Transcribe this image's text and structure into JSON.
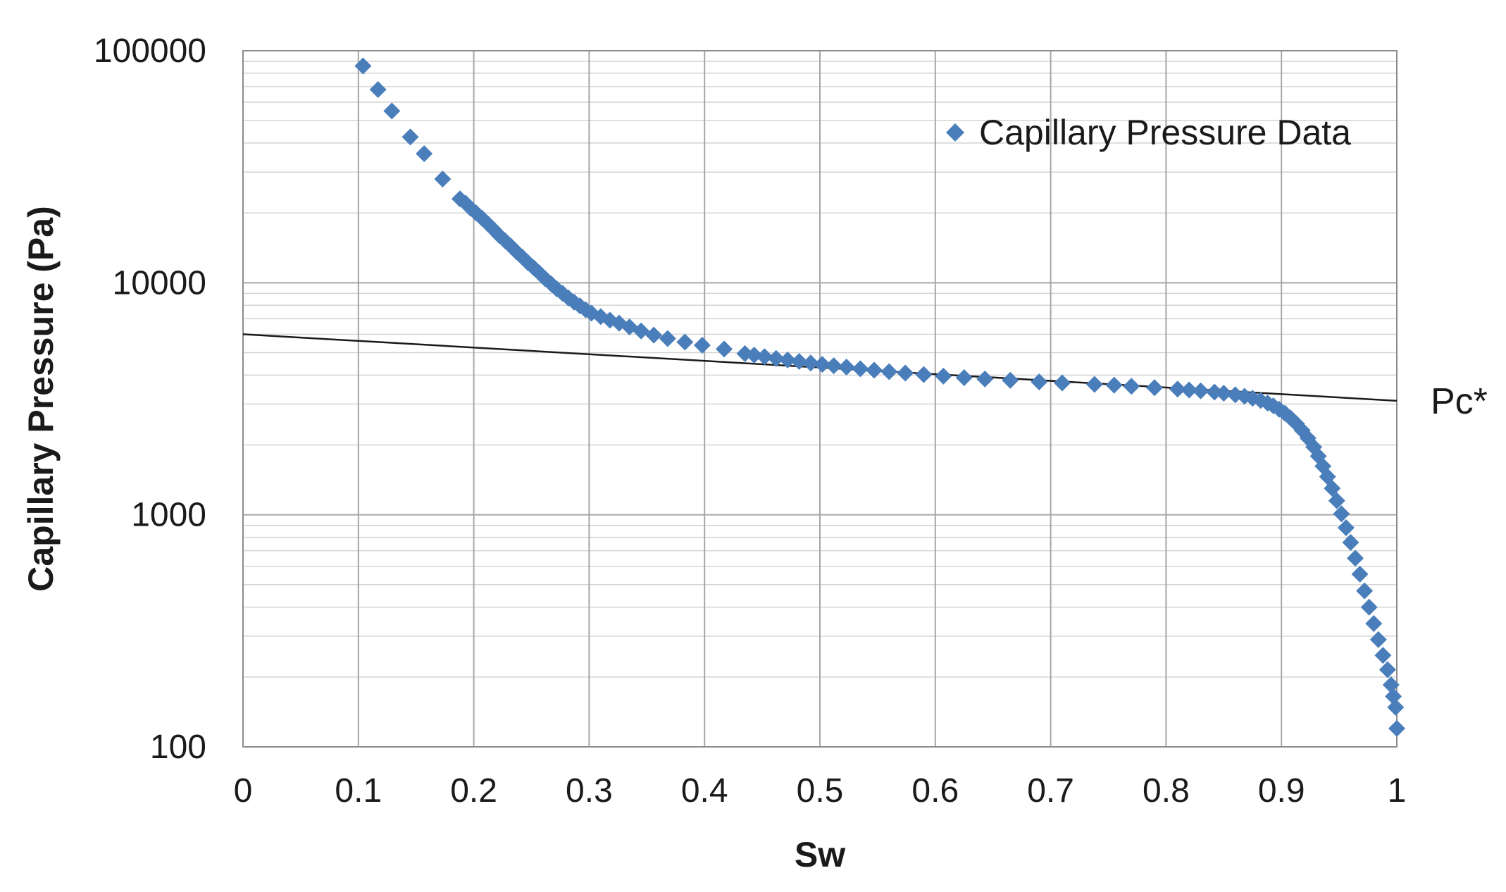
{
  "chart_data": {
    "type": "scatter",
    "title": "",
    "xlabel": "Sw",
    "ylabel": "Capillary Pressure (Pa)",
    "xlim": [
      0,
      1
    ],
    "ylim": [
      100,
      100000
    ],
    "yscale": "log",
    "grid": true,
    "x_ticks": [
      "0",
      "0.1",
      "0.2",
      "0.3",
      "0.4",
      "0.5",
      "0.6",
      "0.7",
      "0.8",
      "0.9",
      "1"
    ],
    "y_ticks": [
      "100",
      "1000",
      "10000",
      "100000"
    ],
    "legend": {
      "position": "top-right",
      "entries": [
        "Capillary Pressure Data"
      ]
    },
    "series": [
      {
        "name": "Capillary Pressure Data",
        "marker": "diamond",
        "color": "#4a7ebb",
        "points": [
          [
            0.104,
            86000
          ],
          [
            0.117,
            68000
          ],
          [
            0.129,
            55000
          ],
          [
            0.145,
            42500
          ],
          [
            0.157,
            36000
          ],
          [
            0.173,
            28000
          ],
          [
            0.188,
            23000
          ],
          [
            0.193,
            22000
          ],
          [
            0.197,
            21000
          ],
          [
            0.202,
            20000
          ],
          [
            0.207,
            19000
          ],
          [
            0.212,
            18000
          ],
          [
            0.217,
            17000
          ],
          [
            0.222,
            16000
          ],
          [
            0.227,
            15200
          ],
          [
            0.232,
            14400
          ],
          [
            0.237,
            13600
          ],
          [
            0.242,
            12900
          ],
          [
            0.247,
            12200
          ],
          [
            0.252,
            11600
          ],
          [
            0.257,
            11000
          ],
          [
            0.262,
            10400
          ],
          [
            0.267,
            9900
          ],
          [
            0.272,
            9400
          ],
          [
            0.277,
            9000
          ],
          [
            0.282,
            8600
          ],
          [
            0.287,
            8250
          ],
          [
            0.292,
            7950
          ],
          [
            0.297,
            7650
          ],
          [
            0.302,
            7400
          ],
          [
            0.31,
            7150
          ],
          [
            0.318,
            6900
          ],
          [
            0.326,
            6700
          ],
          [
            0.335,
            6450
          ],
          [
            0.345,
            6200
          ],
          [
            0.356,
            5950
          ],
          [
            0.368,
            5750
          ],
          [
            0.383,
            5550
          ],
          [
            0.398,
            5380
          ],
          [
            0.417,
            5180
          ],
          [
            0.435,
            4950
          ],
          [
            0.443,
            4880
          ],
          [
            0.452,
            4800
          ],
          [
            0.462,
            4720
          ],
          [
            0.472,
            4650
          ],
          [
            0.482,
            4580
          ],
          [
            0.492,
            4510
          ],
          [
            0.502,
            4450
          ],
          [
            0.512,
            4390
          ],
          [
            0.523,
            4330
          ],
          [
            0.535,
            4260
          ],
          [
            0.547,
            4200
          ],
          [
            0.56,
            4140
          ],
          [
            0.574,
            4080
          ],
          [
            0.59,
            4020
          ],
          [
            0.607,
            3960
          ],
          [
            0.625,
            3900
          ],
          [
            0.643,
            3850
          ],
          [
            0.665,
            3800
          ],
          [
            0.69,
            3740
          ],
          [
            0.71,
            3700
          ],
          [
            0.738,
            3650
          ],
          [
            0.755,
            3620
          ],
          [
            0.77,
            3580
          ],
          [
            0.79,
            3530
          ],
          [
            0.81,
            3480
          ],
          [
            0.82,
            3450
          ],
          [
            0.83,
            3420
          ],
          [
            0.842,
            3380
          ],
          [
            0.85,
            3340
          ],
          [
            0.86,
            3290
          ],
          [
            0.868,
            3240
          ],
          [
            0.875,
            3180
          ],
          [
            0.882,
            3110
          ],
          [
            0.888,
            3030
          ],
          [
            0.893,
            2950
          ],
          [
            0.898,
            2850
          ],
          [
            0.903,
            2740
          ],
          [
            0.908,
            2610
          ],
          [
            0.913,
            2470
          ],
          [
            0.918,
            2310
          ],
          [
            0.923,
            2140
          ],
          [
            0.928,
            1960
          ],
          [
            0.932,
            1790
          ],
          [
            0.936,
            1620
          ],
          [
            0.94,
            1460
          ],
          [
            0.944,
            1300
          ],
          [
            0.948,
            1150
          ],
          [
            0.952,
            1010
          ],
          [
            0.956,
            880
          ],
          [
            0.96,
            760
          ],
          [
            0.964,
            650
          ],
          [
            0.968,
            555
          ],
          [
            0.972,
            470
          ],
          [
            0.976,
            400
          ],
          [
            0.98,
            340
          ],
          [
            0.984,
            290
          ],
          [
            0.988,
            248
          ],
          [
            0.992,
            215
          ],
          [
            0.995,
            185
          ],
          [
            0.997,
            165
          ],
          [
            0.999,
            148
          ],
          [
            1.0,
            120
          ]
        ]
      }
    ],
    "trendline": {
      "points": [
        [
          0,
          6000
        ],
        [
          1,
          3100
        ]
      ],
      "color": "#1a1a1a"
    },
    "annotations": [
      {
        "text": "Pc*",
        "anchor": "trendline-end"
      }
    ]
  }
}
